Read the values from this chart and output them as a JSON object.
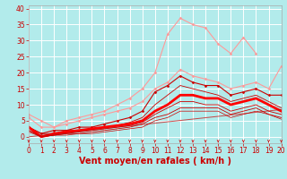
{
  "background_color": "#b2ebeb",
  "grid_color": "#ffffff",
  "xlabel": "Vent moyen/en rafales ( km/h )",
  "xlabel_color": "#cc0000",
  "xlabel_fontsize": 7,
  "tick_color": "#cc0000",
  "tick_fontsize": 5.5,
  "xlim": [
    0,
    20
  ],
  "ylim": [
    -2,
    41
  ],
  "yticks": [
    0,
    5,
    10,
    15,
    20,
    25,
    30,
    35,
    40
  ],
  "xticks": [
    0,
    1,
    2,
    3,
    4,
    5,
    6,
    7,
    8,
    9,
    10,
    11,
    12,
    13,
    14,
    15,
    16,
    17,
    18,
    19,
    20
  ],
  "series": [
    {
      "comment": "light pink high line with diamonds - max gust",
      "x": [
        0,
        1,
        2,
        3,
        4,
        5,
        6,
        7,
        8,
        9,
        10,
        11,
        12,
        13,
        14,
        15,
        16,
        17,
        18,
        19,
        20
      ],
      "y": [
        6,
        3,
        3,
        5,
        6,
        7,
        8,
        10,
        12,
        15,
        20,
        32,
        37,
        35,
        34,
        29,
        26,
        31,
        26,
        null,
        null
      ],
      "color": "#ff9999",
      "lw": 0.8,
      "marker": "D",
      "markersize": 1.5,
      "alpha": 1.0
    },
    {
      "comment": "light pink upper line with diamonds",
      "x": [
        0,
        1,
        2,
        3,
        4,
        5,
        6,
        7,
        8,
        9,
        10,
        11,
        12,
        13,
        14,
        15,
        16,
        17,
        18,
        19,
        20
      ],
      "y": [
        7,
        5,
        3,
        4,
        5,
        6,
        7,
        8,
        9,
        11,
        15,
        17,
        21,
        19,
        18,
        17,
        15,
        16,
        17,
        15,
        22
      ],
      "color": "#ff9999",
      "lw": 0.8,
      "marker": "D",
      "markersize": 1.5,
      "alpha": 1.0
    },
    {
      "comment": "medium red line upper - 90th percentile",
      "x": [
        0,
        1,
        2,
        3,
        4,
        5,
        6,
        7,
        8,
        9,
        10,
        11,
        12,
        13,
        14,
        15,
        16,
        17,
        18,
        19,
        20
      ],
      "y": [
        3,
        1,
        2,
        2,
        3,
        3,
        4,
        5,
        6,
        8,
        14,
        16,
        19,
        17,
        16,
        16,
        13,
        14,
        15,
        13,
        13
      ],
      "color": "#cc0000",
      "lw": 0.8,
      "marker": "D",
      "markersize": 1.5,
      "alpha": 1.0
    },
    {
      "comment": "thin red line - 75th",
      "x": [
        0,
        1,
        2,
        3,
        4,
        5,
        6,
        7,
        8,
        9,
        10,
        11,
        12,
        13,
        14,
        15,
        16,
        17,
        18,
        19,
        20
      ],
      "y": [
        3,
        1,
        1,
        2,
        2,
        2.5,
        3,
        3.5,
        4.5,
        6,
        10,
        13,
        16,
        15,
        14,
        13,
        11,
        12,
        13,
        11,
        9
      ],
      "color": "#cc0000",
      "lw": 0.6,
      "marker": null,
      "markersize": 0,
      "alpha": 1.0
    },
    {
      "comment": "thin red line - 50th median bold",
      "x": [
        0,
        1,
        2,
        3,
        4,
        5,
        6,
        7,
        8,
        9,
        10,
        11,
        12,
        13,
        14,
        15,
        16,
        17,
        18,
        19,
        20
      ],
      "y": [
        3,
        0,
        1,
        1.5,
        2,
        2.5,
        3,
        3.5,
        4,
        5,
        8,
        10,
        13,
        13,
        12,
        12,
        10,
        11,
        12,
        10,
        8
      ],
      "color": "#ff0000",
      "lw": 2.0,
      "marker": null,
      "markersize": 0,
      "alpha": 1.0
    },
    {
      "comment": "thin red line - 25th",
      "x": [
        0,
        1,
        2,
        3,
        4,
        5,
        6,
        7,
        8,
        9,
        10,
        11,
        12,
        13,
        14,
        15,
        16,
        17,
        18,
        19,
        20
      ],
      "y": [
        2,
        0,
        0.5,
        1,
        1.5,
        2,
        2.5,
        3,
        3.5,
        4.5,
        7,
        9,
        11,
        11,
        10,
        10,
        8,
        9,
        10,
        8,
        7
      ],
      "color": "#cc0000",
      "lw": 0.6,
      "marker": null,
      "markersize": 0,
      "alpha": 1.0
    },
    {
      "comment": "thin red line - 10th",
      "x": [
        0,
        1,
        2,
        3,
        4,
        5,
        6,
        7,
        8,
        9,
        10,
        11,
        12,
        13,
        14,
        15,
        16,
        17,
        18,
        19,
        20
      ],
      "y": [
        2,
        0,
        0.5,
        1,
        1,
        1.5,
        2,
        2.5,
        3,
        4,
        6,
        7,
        9,
        9,
        9,
        9,
        7,
        8,
        9,
        7,
        6
      ],
      "color": "#cc0000",
      "lw": 0.6,
      "marker": null,
      "markersize": 0,
      "alpha": 1.0
    },
    {
      "comment": "lowest thin red line - min",
      "x": [
        0,
        1,
        2,
        3,
        4,
        5,
        6,
        7,
        8,
        9,
        10,
        11,
        12,
        13,
        14,
        15,
        16,
        17,
        18,
        19,
        20
      ],
      "y": [
        1.5,
        0,
        0.5,
        0.5,
        1,
        1,
        1.5,
        2,
        2.5,
        3,
        5,
        6,
        8,
        8,
        8,
        8,
        6,
        7,
        8,
        7,
        5.5
      ],
      "color": "#cc0000",
      "lw": 0.5,
      "marker": null,
      "markersize": 0,
      "alpha": 1.0
    },
    {
      "comment": "diagonal reference line from 0 to 8.5",
      "x": [
        0,
        20
      ],
      "y": [
        0,
        8.5
      ],
      "color": "#cc0000",
      "lw": 0.7,
      "marker": null,
      "markersize": 0,
      "alpha": 0.7
    }
  ],
  "wind_markers_x": [
    0,
    1,
    2,
    3,
    4,
    5,
    6,
    7,
    8,
    9,
    10,
    11,
    12,
    13,
    14,
    15,
    16,
    17,
    18,
    19,
    20
  ],
  "wind_marker_y": -1.2,
  "wind_marker_color": "#cc0000",
  "wind_marker_size": 4
}
